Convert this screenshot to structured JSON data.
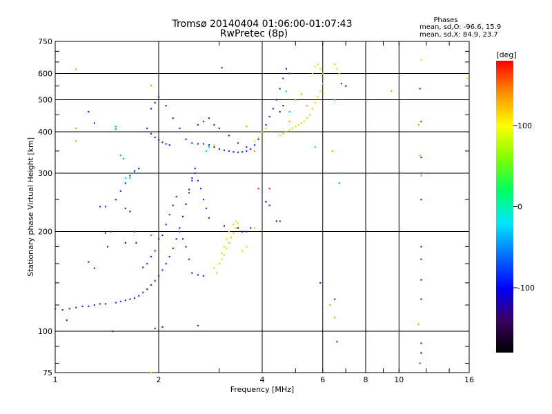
{
  "chart_data": {
    "type": "scatter",
    "title": "Tromsø 20140404 01:06:00-01:07:43",
    "subtitle": "RwPretec (8p)",
    "xlabel": "Frequency [MHz]",
    "ylabel": "Stationary phase Virtual Height [km]",
    "x_scale": "log",
    "y_scale": "log",
    "xlim": [
      1,
      16
    ],
    "ylim": [
      75,
      750
    ],
    "x_ticks": [
      1,
      2,
      4,
      6,
      8,
      10,
      16
    ],
    "y_ticks": [
      75,
      100,
      200,
      300,
      400,
      500,
      600,
      750
    ],
    "grid": true,
    "phase_stats": {
      "heading": "Phases",
      "line_o": "mean, sd,O: -96.6, 15.9",
      "line_x": "mean, sd,X:  84.9, 23.7"
    },
    "colorbar": {
      "label": "[deg]",
      "range": [
        -180,
        180
      ],
      "ticks": [
        -100,
        0,
        100
      ],
      "colors": [
        "#000000",
        "#3a0060",
        "#0000ff",
        "#0070ff",
        "#00e8ff",
        "#00ff60",
        "#80ff00",
        "#ffff00",
        "#ff9000",
        "#ff0000"
      ]
    },
    "series": [
      {
        "color": "#1a2fe6",
        "points": [
          [
            1.0,
            117
          ],
          [
            1.05,
            116
          ],
          [
            1.1,
            117
          ],
          [
            1.15,
            118
          ],
          [
            1.2,
            119
          ],
          [
            1.25,
            119
          ],
          [
            1.3,
            120
          ],
          [
            1.35,
            121
          ],
          [
            1.4,
            121
          ],
          [
            1.5,
            122
          ],
          [
            1.55,
            123
          ],
          [
            1.6,
            124
          ],
          [
            1.65,
            125
          ],
          [
            1.7,
            126
          ],
          [
            1.75,
            128
          ],
          [
            1.8,
            131
          ],
          [
            1.85,
            134
          ],
          [
            1.9,
            138
          ],
          [
            1.95,
            142
          ],
          [
            2.0,
            147
          ],
          [
            2.05,
            153
          ],
          [
            2.1,
            160
          ],
          [
            2.15,
            168
          ],
          [
            2.2,
            178
          ],
          [
            2.25,
            190
          ],
          [
            2.3,
            205
          ],
          [
            2.35,
            222
          ],
          [
            2.4,
            242
          ],
          [
            2.45,
            262
          ],
          [
            2.5,
            285
          ],
          [
            2.55,
            300
          ],
          [
            1.95,
            102
          ],
          [
            2.05,
            103
          ],
          [
            2.6,
            104
          ],
          [
            1.47,
            100
          ],
          [
            1.08,
            108
          ],
          [
            2.1,
            210
          ],
          [
            2.15,
            225
          ],
          [
            2.2,
            240
          ],
          [
            2.25,
            255
          ],
          [
            2.3,
            200
          ],
          [
            2.35,
            190
          ],
          [
            2.4,
            180
          ],
          [
            2.45,
            165
          ],
          [
            2.5,
            150
          ],
          [
            2.6,
            148
          ],
          [
            2.7,
            147
          ],
          [
            1.35,
            238
          ],
          [
            1.4,
            238
          ],
          [
            1.45,
            200
          ],
          [
            1.4,
            198
          ],
          [
            1.42,
            180
          ],
          [
            1.5,
            250
          ],
          [
            1.55,
            265
          ],
          [
            1.6,
            280
          ],
          [
            1.65,
            295
          ],
          [
            1.7,
            305
          ],
          [
            1.75,
            310
          ],
          [
            1.6,
            235
          ],
          [
            1.65,
            230
          ],
          [
            1.7,
            200
          ],
          [
            1.72,
            185
          ],
          [
            1.3,
            155
          ],
          [
            1.25,
            162
          ],
          [
            1.85,
            410
          ],
          [
            1.9,
            395
          ],
          [
            1.95,
            385
          ],
          [
            2.0,
            378
          ],
          [
            2.05,
            372
          ],
          [
            2.1,
            368
          ],
          [
            2.15,
            365
          ],
          [
            1.9,
            470
          ],
          [
            1.95,
            490
          ],
          [
            2.0,
            510
          ],
          [
            2.1,
            480
          ],
          [
            2.2,
            440
          ],
          [
            2.3,
            410
          ],
          [
            2.4,
            380
          ],
          [
            2.5,
            370
          ],
          [
            2.6,
            368
          ],
          [
            2.7,
            368
          ],
          [
            2.8,
            365
          ],
          [
            2.9,
            360
          ],
          [
            3.0,
            355
          ],
          [
            3.1,
            352
          ],
          [
            3.2,
            350
          ],
          [
            3.3,
            348
          ],
          [
            3.4,
            347
          ],
          [
            3.5,
            348
          ],
          [
            3.6,
            350
          ],
          [
            3.7,
            355
          ],
          [
            3.8,
            365
          ],
          [
            3.9,
            380
          ],
          [
            4.0,
            400
          ],
          [
            4.1,
            420
          ],
          [
            4.2,
            445
          ],
          [
            4.3,
            470
          ],
          [
            4.4,
            500
          ],
          [
            4.5,
            540
          ],
          [
            4.6,
            580
          ],
          [
            4.7,
            620
          ],
          [
            4.8,
            600
          ],
          [
            4.5,
            460
          ],
          [
            4.6,
            480
          ],
          [
            2.6,
            420
          ],
          [
            2.7,
            430
          ],
          [
            2.8,
            440
          ],
          [
            2.9,
            420
          ],
          [
            3.0,
            410
          ],
          [
            3.2,
            390
          ],
          [
            3.4,
            370
          ],
          [
            3.6,
            360
          ],
          [
            1.3,
            425
          ],
          [
            1.25,
            460
          ],
          [
            3.05,
            625
          ],
          [
            3.5,
            200
          ],
          [
            3.6,
            200
          ],
          [
            3.7,
            205
          ],
          [
            2.45,
            268
          ],
          [
            2.5,
            290
          ],
          [
            2.55,
            310
          ],
          [
            2.6,
            285
          ],
          [
            2.65,
            270
          ],
          [
            2.7,
            250
          ],
          [
            2.75,
            235
          ],
          [
            2.8,
            220
          ],
          [
            6.8,
            560
          ],
          [
            7.0,
            550
          ],
          [
            2.0,
            190
          ],
          [
            2.05,
            195
          ],
          [
            1.95,
            175
          ],
          [
            1.9,
            168
          ],
          [
            1.85,
            160
          ],
          [
            1.8,
            156
          ],
          [
            4.2,
            240
          ],
          [
            4.5,
            215
          ],
          [
            5.9,
            140
          ],
          [
            6.5,
            125
          ],
          [
            6.6,
            93
          ],
          [
            11.6,
            92
          ],
          [
            11.6,
            250
          ],
          [
            11.6,
            335
          ],
          [
            11.5,
            540
          ],
          [
            11.6,
            125
          ],
          [
            11.6,
            143
          ],
          [
            11.6,
            165
          ],
          [
            11.6,
            180
          ]
        ]
      },
      {
        "color": "#c8e600",
        "points": [
          [
            3.0,
            160
          ],
          [
            3.05,
            165
          ],
          [
            3.1,
            170
          ],
          [
            3.15,
            178
          ],
          [
            3.2,
            185
          ],
          [
            3.25,
            192
          ],
          [
            3.3,
            198
          ],
          [
            3.35,
            205
          ],
          [
            3.4,
            212
          ],
          [
            3.2,
            200
          ],
          [
            3.15,
            190
          ],
          [
            3.1,
            180
          ],
          [
            3.05,
            172
          ],
          [
            3.3,
            210
          ],
          [
            3.35,
            215
          ],
          [
            2.9,
            155
          ],
          [
            2.95,
            150
          ],
          [
            4.5,
            390
          ],
          [
            4.6,
            395
          ],
          [
            4.7,
            400
          ],
          [
            4.8,
            405
          ],
          [
            4.9,
            410
          ],
          [
            5.0,
            415
          ],
          [
            5.1,
            420
          ],
          [
            5.2,
            425
          ],
          [
            5.3,
            430
          ],
          [
            5.4,
            440
          ],
          [
            5.5,
            450
          ],
          [
            5.6,
            470
          ],
          [
            5.7,
            490
          ],
          [
            5.8,
            510
          ],
          [
            5.9,
            530
          ],
          [
            6.0,
            560
          ],
          [
            5.6,
            600
          ],
          [
            5.7,
            630
          ],
          [
            5.8,
            640
          ],
          [
            5.9,
            620
          ],
          [
            6.0,
            600
          ],
          [
            6.5,
            640
          ],
          [
            6.6,
            620
          ],
          [
            6.7,
            600
          ],
          [
            4.0,
            400
          ],
          [
            4.1,
            410
          ],
          [
            3.8,
            375
          ],
          [
            3.9,
            385
          ],
          [
            2.8,
            360
          ],
          [
            2.9,
            365
          ],
          [
            3.5,
            175
          ],
          [
            3.6,
            180
          ],
          [
            3.8,
            205
          ],
          [
            1.9,
            75
          ],
          [
            11.6,
            660
          ],
          [
            15.8,
            580
          ]
        ]
      },
      {
        "color": "#ff9a00",
        "points": [
          [
            1.15,
            618
          ],
          [
            1.9,
            552
          ],
          [
            1.15,
            410
          ],
          [
            1.15,
            375
          ],
          [
            3.6,
            415
          ],
          [
            4.2,
            270
          ],
          [
            4.8,
            430
          ],
          [
            5.0,
            500
          ],
          [
            5.2,
            520
          ],
          [
            5.4,
            480
          ],
          [
            9.5,
            532
          ],
          [
            11.4,
            420
          ],
          [
            11.6,
            295
          ],
          [
            11.5,
            340
          ],
          [
            11.4,
            105
          ],
          [
            6.3,
            120
          ],
          [
            6.5,
            110
          ],
          [
            6.4,
            350
          ],
          [
            3.8,
            350
          ]
        ]
      },
      {
        "color": "#00cc40",
        "points": [
          [
            1.5,
            415
          ],
          [
            1.5,
            408
          ],
          [
            1.55,
            340
          ],
          [
            1.58,
            332
          ],
          [
            6.7,
            280
          ],
          [
            6.8,
            300
          ],
          [
            1.9,
            195
          ],
          [
            1.7,
            302
          ]
        ]
      },
      {
        "color": "#00d8f0",
        "points": [
          [
            2.75,
            350
          ],
          [
            2.8,
            360
          ],
          [
            4.8,
            460
          ],
          [
            5.7,
            360
          ],
          [
            4.7,
            530
          ],
          [
            6.5,
            500
          ],
          [
            1.6,
            290
          ],
          [
            1.65,
            290
          ]
        ]
      },
      {
        "color": "#ff2020",
        "points": [
          [
            11.6,
            300
          ],
          [
            11.5,
            80
          ],
          [
            11.6,
            430
          ],
          [
            4.2,
            270
          ],
          [
            3.9,
            270
          ]
        ]
      },
      {
        "color": "#4a0080",
        "points": [
          [
            1.6,
            185
          ],
          [
            4.4,
            215
          ],
          [
            4.1,
            246
          ],
          [
            11.6,
            86
          ],
          [
            3.1,
            208
          ],
          [
            3.4,
            205
          ],
          [
            3.5,
            200
          ]
        ]
      }
    ]
  }
}
